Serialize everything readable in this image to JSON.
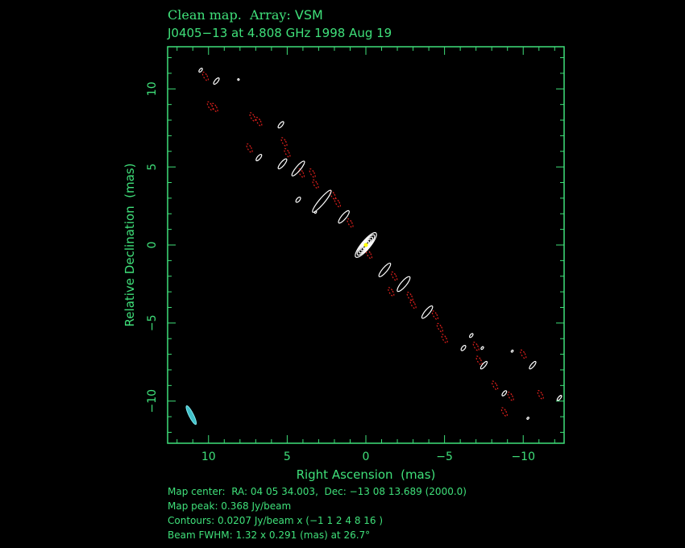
{
  "header": {
    "title_prefix": "Clean map.  Array: ",
    "array": "VSM",
    "subtitle": "J0405−13 at 4.808 GHz 1998 Aug 19"
  },
  "footer": {
    "map_center": "Map center:  RA: 04 05 34.003,  Dec: −13 08 13.689 (2000.0)",
    "map_peak": "Map peak: 0.368 Jy/beam",
    "contours": "Contours: 0.0207 Jy/beam x (−1 1 2 4 8 16 )",
    "beam": "Beam FWHM: 1.32 x 0.291 (mas) at 26.7°"
  },
  "colors": {
    "axis": "#3fe07a",
    "positive_contour": "#ffffff",
    "negative_contour": "#e0201c",
    "peak": "#ffff00",
    "beam": "#40c0c8"
  },
  "chart_data": {
    "type": "contour",
    "xlabel": "Right Ascension  (mas)",
    "ylabel": "Relative Declination  (mas)",
    "xlim": [
      12.6,
      -12.6
    ],
    "ylim": [
      -12.7,
      12.7
    ],
    "xticks": [
      10,
      5,
      0,
      -5,
      -10
    ],
    "yticks": [
      10,
      5,
      0,
      -5,
      -10
    ],
    "xtick_labels": [
      "10",
      "5",
      "0",
      "−5",
      "−10"
    ],
    "ytick_labels": [
      "10",
      "5",
      "0",
      "−5",
      "−10"
    ],
    "peak": {
      "x": 0,
      "y": 0,
      "value_jy_per_beam": 0.368
    },
    "contour_levels": [
      -1,
      1,
      2,
      4,
      8,
      16
    ],
    "contour_base_jy_per_beam": 0.0207,
    "beam": {
      "major_mas": 1.32,
      "minor_mas": 0.291,
      "pa_deg": 26.7,
      "x": 11.1,
      "y": -10.9
    },
    "positive_components": [
      {
        "x": 0.0,
        "y": 0.0,
        "major": 2.0,
        "minor": 0.55,
        "levels": 5
      },
      {
        "x": 1.4,
        "y": 1.8,
        "major": 1.0,
        "minor": 0.3,
        "levels": 1
      },
      {
        "x": 2.8,
        "y": 2.8,
        "major": 1.8,
        "minor": 0.35,
        "levels": 1
      },
      {
        "x": 4.3,
        "y": 4.9,
        "major": 1.2,
        "minor": 0.3,
        "levels": 1
      },
      {
        "x": 5.3,
        "y": 5.2,
        "major": 0.8,
        "minor": 0.25,
        "levels": 1
      },
      {
        "x": 4.3,
        "y": 2.9,
        "major": 0.4,
        "minor": 0.2,
        "levels": 1
      },
      {
        "x": 6.8,
        "y": 5.6,
        "major": 0.5,
        "minor": 0.2,
        "levels": 1
      },
      {
        "x": 5.4,
        "y": 7.7,
        "major": 0.5,
        "minor": 0.2,
        "levels": 1
      },
      {
        "x": 9.5,
        "y": 10.5,
        "major": 0.5,
        "minor": 0.2,
        "levels": 1
      },
      {
        "x": 10.5,
        "y": 11.2,
        "major": 0.3,
        "minor": 0.15,
        "levels": 1
      },
      {
        "x": 8.1,
        "y": 10.6,
        "major": 0.1,
        "minor": 0.1,
        "levels": 1
      },
      {
        "x": 3.2,
        "y": 2.1,
        "major": 0.15,
        "minor": 0.1,
        "levels": 1
      },
      {
        "x": -1.2,
        "y": -1.6,
        "major": 1.1,
        "minor": 0.3,
        "levels": 1
      },
      {
        "x": -2.4,
        "y": -2.5,
        "major": 1.2,
        "minor": 0.35,
        "levels": 1
      },
      {
        "x": -3.9,
        "y": -4.3,
        "major": 1.0,
        "minor": 0.3,
        "levels": 1
      },
      {
        "x": -6.2,
        "y": -6.6,
        "major": 0.4,
        "minor": 0.2,
        "levels": 1
      },
      {
        "x": -6.7,
        "y": -5.8,
        "major": 0.3,
        "minor": 0.15,
        "levels": 1
      },
      {
        "x": -7.4,
        "y": -6.6,
        "major": 0.2,
        "minor": 0.12,
        "levels": 1
      },
      {
        "x": -7.5,
        "y": -7.7,
        "major": 0.6,
        "minor": 0.2,
        "levels": 1
      },
      {
        "x": -8.8,
        "y": -9.5,
        "major": 0.4,
        "minor": 0.18,
        "levels": 1
      },
      {
        "x": -10.6,
        "y": -7.7,
        "major": 0.6,
        "minor": 0.2,
        "levels": 1
      },
      {
        "x": -9.3,
        "y": -6.8,
        "major": 0.15,
        "minor": 0.1,
        "levels": 1
      },
      {
        "x": -12.3,
        "y": -9.8,
        "major": 0.4,
        "minor": 0.15,
        "levels": 1
      },
      {
        "x": -10.3,
        "y": -11.1,
        "major": 0.15,
        "minor": 0.1,
        "levels": 1
      }
    ],
    "negative_components": [
      {
        "x": 10.2,
        "y": 10.8
      },
      {
        "x": 9.9,
        "y": 8.9
      },
      {
        "x": 9.6,
        "y": 8.8
      },
      {
        "x": 7.2,
        "y": 8.2
      },
      {
        "x": 6.8,
        "y": 7.9
      },
      {
        "x": 7.4,
        "y": 6.2
      },
      {
        "x": 5.2,
        "y": 6.6
      },
      {
        "x": 5.0,
        "y": 5.9
      },
      {
        "x": 4.1,
        "y": 4.6
      },
      {
        "x": 3.4,
        "y": 4.6
      },
      {
        "x": 3.2,
        "y": 3.9
      },
      {
        "x": 2.1,
        "y": 3.2
      },
      {
        "x": 1.8,
        "y": 2.7
      },
      {
        "x": 1.0,
        "y": 1.4
      },
      {
        "x": -0.2,
        "y": -0.6
      },
      {
        "x": -1.8,
        "y": -2.0
      },
      {
        "x": -1.6,
        "y": -3.0
      },
      {
        "x": -2.8,
        "y": -3.3
      },
      {
        "x": -3.0,
        "y": -3.8
      },
      {
        "x": -4.4,
        "y": -4.5
      },
      {
        "x": -4.7,
        "y": -5.3
      },
      {
        "x": -5.0,
        "y": -6.0
      },
      {
        "x": -7.0,
        "y": -6.5
      },
      {
        "x": -7.2,
        "y": -7.4
      },
      {
        "x": -8.2,
        "y": -9.0
      },
      {
        "x": -9.2,
        "y": -9.7
      },
      {
        "x": -10.0,
        "y": -7.0
      },
      {
        "x": -11.1,
        "y": -9.6
      },
      {
        "x": -8.8,
        "y": -10.7
      }
    ]
  }
}
